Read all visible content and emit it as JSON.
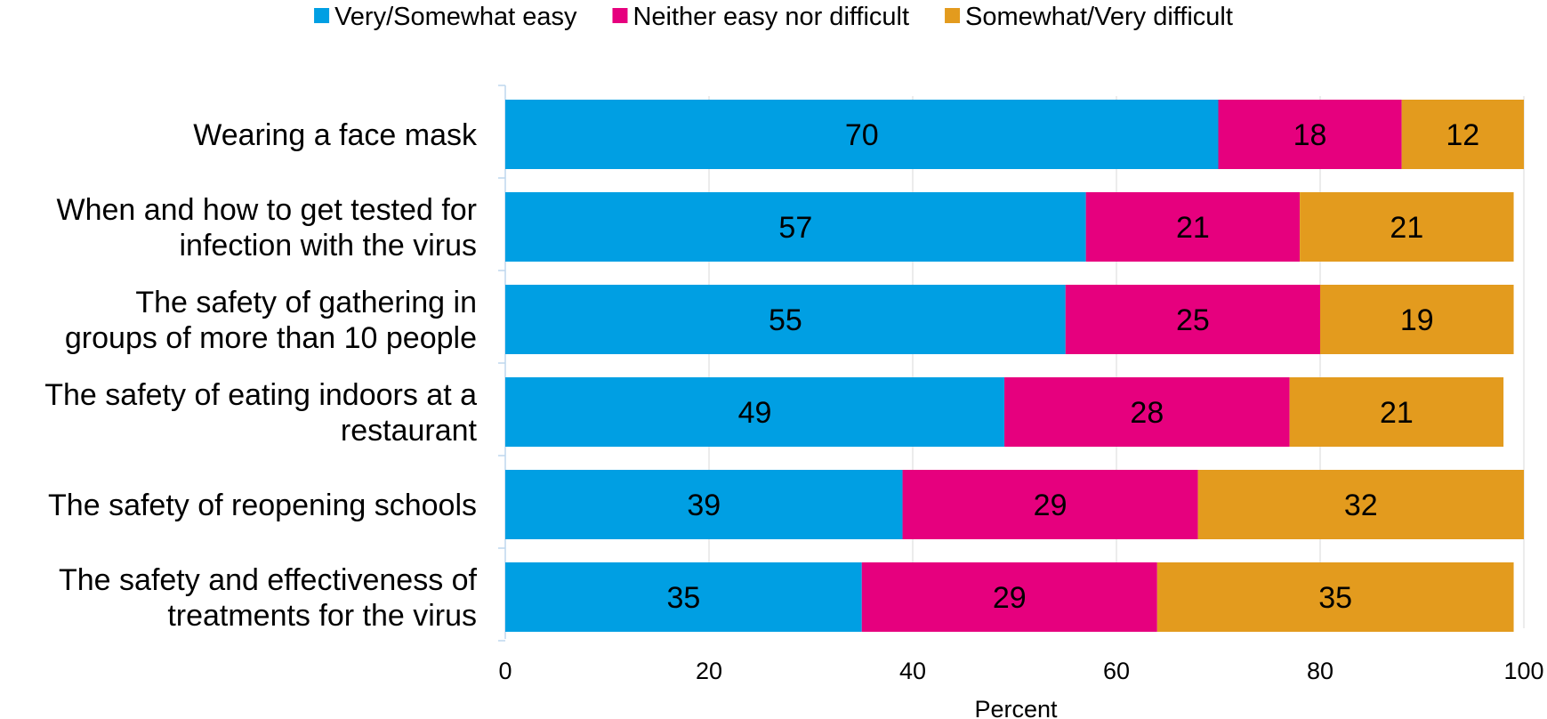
{
  "chart_data": {
    "type": "bar",
    "orientation": "horizontal",
    "stacked": true,
    "categories": [
      "Wearing a face mask",
      "When and how to get tested for infection with the virus",
      "The safety of gathering in groups of more than 10 people",
      "The safety of eating indoors at a restaurant",
      "The safety of reopening schools",
      "The safety and effectiveness of treatments for the virus"
    ],
    "category_lines": [
      [
        "Wearing a face mask"
      ],
      [
        "When and how to get tested for",
        "infection with the virus"
      ],
      [
        "The safety of gathering in",
        "groups of more than 10 people"
      ],
      [
        "The safety of eating indoors at a",
        "restaurant"
      ],
      [
        "The safety of reopening schools"
      ],
      [
        "The safety and effectiveness of",
        "treatments for the virus"
      ]
    ],
    "series": [
      {
        "name": "Very/Somewhat easy",
        "color": "#009fe3",
        "values": [
          70,
          57,
          55,
          49,
          39,
          35
        ]
      },
      {
        "name": "Neither easy nor difficult",
        "color": "#e6007e",
        "values": [
          18,
          21,
          25,
          28,
          29,
          29
        ]
      },
      {
        "name": "Somewhat/Very difficult",
        "color": "#e39b1e",
        "values": [
          12,
          21,
          19,
          21,
          32,
          35
        ]
      }
    ],
    "xlabel": "Percent",
    "ylabel": "",
    "xlim": [
      0,
      100
    ],
    "xticks": [
      0,
      20,
      40,
      60,
      80,
      100
    ],
    "grid": true,
    "legend_position": "top"
  }
}
